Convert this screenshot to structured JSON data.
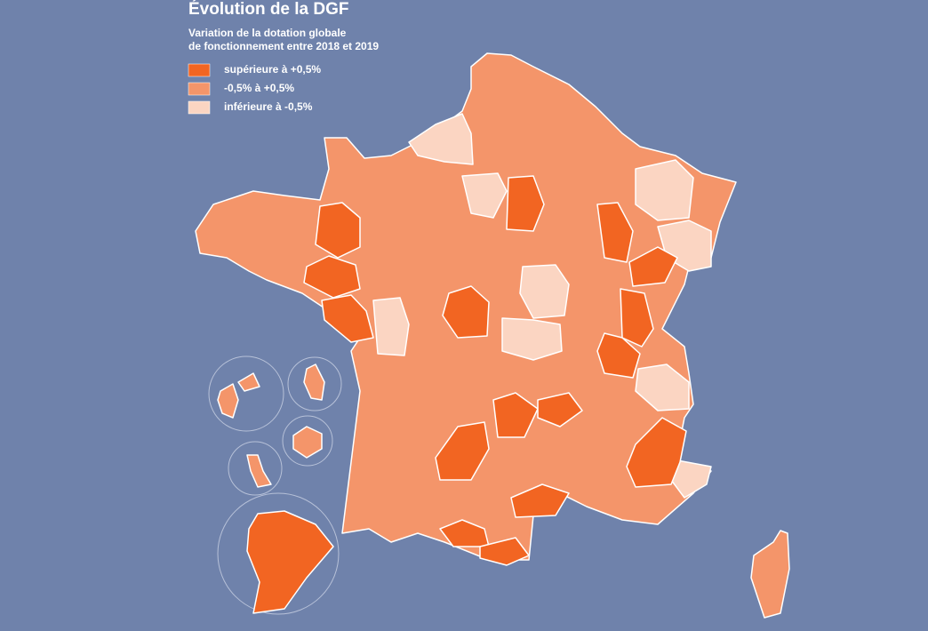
{
  "title": "Évolution de la DGF",
  "subtitle": [
    "Variation de la dotation globale",
    "de fonctionnement entre 2018 et 2019"
  ],
  "legend": {
    "items": [
      {
        "label": "supérieure à +0,5%",
        "color": "#f26522"
      },
      {
        "label": "-0,5% à +0,5%",
        "color": "#f4956a"
      },
      {
        "label": "inférieure à -0,5%",
        "color": "#fbd5c2"
      }
    ]
  }
}
